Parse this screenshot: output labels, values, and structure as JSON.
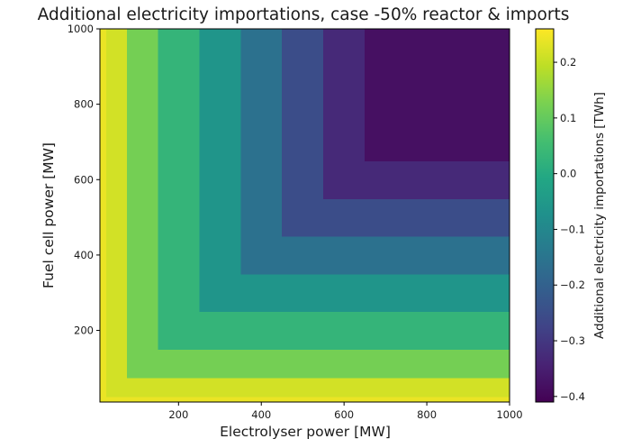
{
  "chart_data": {
    "type": "heatmap",
    "title": "Additional electricity importations, case -50% reactor & imports",
    "xlabel": "Electrolyser power [MW]",
    "ylabel": "Fuel cell power [MW]",
    "colorbar_label": "Additional electricity importations [TWh]",
    "colormap": "viridis",
    "xlim": [
      10,
      1000
    ],
    "ylim": [
      10,
      1000
    ],
    "clim": [
      -0.41,
      0.26
    ],
    "x_ticks": [
      200,
      400,
      600,
      800,
      1000
    ],
    "y_ticks": [
      200,
      400,
      600,
      800,
      1000
    ],
    "colorbar_ticks": [
      0.2,
      0.1,
      0.0,
      -0.1,
      -0.2,
      -0.3,
      -0.4
    ],
    "colorbar_tick_labels": [
      "0.2",
      "0.1",
      "0.0",
      "−0.1",
      "−0.2",
      "−0.3",
      "−0.4"
    ],
    "level_boundaries": [
      10,
      25,
      75,
      150,
      250,
      350,
      450,
      550,
      650,
      1000
    ],
    "level_values": [
      0.24,
      0.215,
      0.12,
      0.03,
      -0.06,
      -0.16,
      -0.25,
      -0.33,
      -0.38,
      -0.4
    ],
    "value_rule": "value at (x, y) = level_values[ index of the level interval containing min(x, y) ]"
  }
}
